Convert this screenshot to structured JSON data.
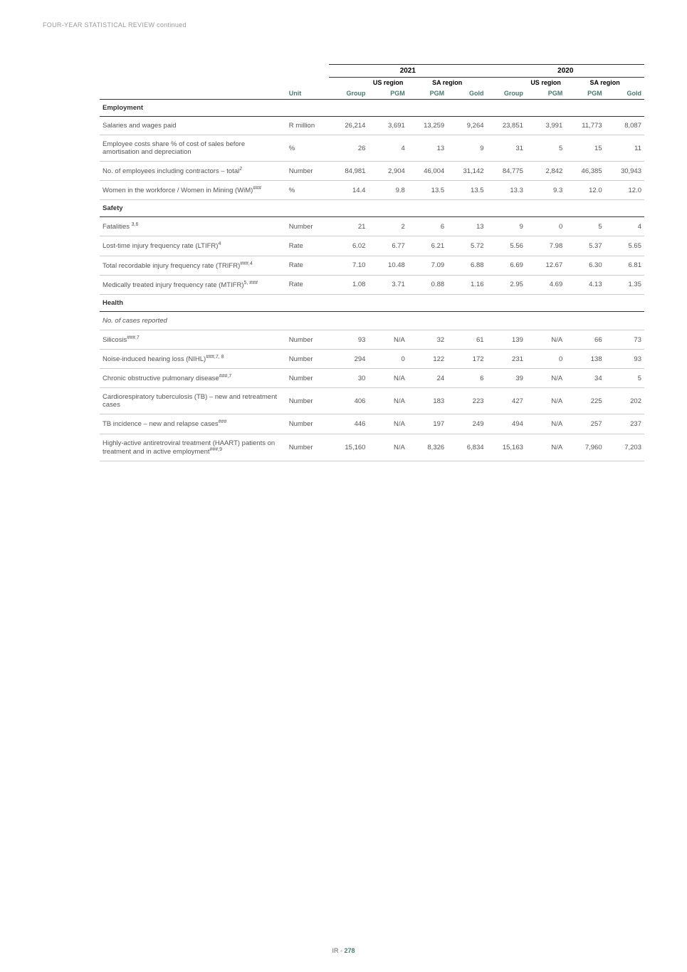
{
  "header": "FOUR-YEAR STATISTICAL REVIEW continued",
  "years": [
    "2021",
    "2020"
  ],
  "region_group": "US region",
  "sa_region": "SA region",
  "col_labels": {
    "unit": "Unit",
    "group": "Group",
    "pgm": "PGM",
    "gold": "Gold"
  },
  "sections": [
    {
      "title": "Employment",
      "rows": [
        {
          "label": "Salaries and wages paid",
          "unit": "R million",
          "y2021": [
            "26,214",
            "3,691",
            "13,259",
            "9,264"
          ],
          "y2020": [
            "23,851",
            "3,991",
            "11,773",
            "8,087"
          ]
        },
        {
          "label": "Employee costs share % of cost of sales before amortisation and depreciation",
          "unit": "%",
          "y2021": [
            "26",
            "4",
            "13",
            "9"
          ],
          "y2020": [
            "31",
            "5",
            "15",
            "11"
          ]
        },
        {
          "label": "No. of employees including contractors – total",
          "sup": "2",
          "unit": "Number",
          "y2021": [
            "84,981",
            "2,904",
            "46,004",
            "31,142"
          ],
          "y2020": [
            "84,775",
            "2,842",
            "46,385",
            "30,943"
          ]
        },
        {
          "label": "Women in the workforce / Women in Mining (WiM)",
          "sup": "###",
          "unit": "%",
          "y2021": [
            "14.4",
            "9.8",
            "13.5",
            "13.5"
          ],
          "y2020": [
            "13.3",
            "9.3",
            "12.0",
            "12.0"
          ]
        }
      ]
    },
    {
      "title": "Safety",
      "rows": [
        {
          "label": "Fatalities ",
          "sup": "3,6",
          "unit": "Number",
          "y2021": [
            "21",
            "2",
            "6",
            "13"
          ],
          "y2020": [
            "9",
            "0",
            "5",
            "4"
          ]
        },
        {
          "label": "Lost-time injury frequency rate (LTIFR)",
          "sup": "4",
          "unit": "Rate",
          "y2021": [
            "6.02",
            "6.77",
            "6.21",
            "5.72"
          ],
          "y2020": [
            "5.56",
            "7.98",
            "5.37",
            "5.65"
          ]
        },
        {
          "label": "Total recordable injury frequency rate (TRIFR)",
          "sup": "###,4",
          "unit": "Rate",
          "y2021": [
            "7.10",
            "10.48",
            "7.09",
            "6.88"
          ],
          "y2020": [
            "6.69",
            "12.67",
            "6.30",
            "6.81"
          ]
        },
        {
          "label": "Medically treated injury frequency rate (MTIFR)",
          "sup": "5, ###",
          "unit": "Rate",
          "y2021": [
            "1.08",
            "3.71",
            "0.88",
            "1.16"
          ],
          "y2020": [
            "2.95",
            "4.69",
            "4.13",
            "1.35"
          ]
        }
      ]
    },
    {
      "title": "Health",
      "rows": [
        {
          "label": "No. of cases reported",
          "italic": true,
          "unit": "",
          "y2021": [
            "",
            "",
            "",
            ""
          ],
          "y2020": [
            "",
            "",
            "",
            ""
          ]
        },
        {
          "label": "Silicosis",
          "sup": "###,7",
          "unit": "Number",
          "y2021": [
            "93",
            "N/A",
            "32",
            "61"
          ],
          "y2020": [
            "139",
            "N/A",
            "66",
            "73"
          ]
        },
        {
          "label": "Noise-induced hearing loss (NIHL)",
          "sup": "###,7, 8",
          "unit": "Number",
          "y2021": [
            "294",
            "0",
            "122",
            "172"
          ],
          "y2020": [
            "231",
            "0",
            "138",
            "93"
          ]
        },
        {
          "label": "Chronic obstructive pulmonary disease",
          "sup": "###,7",
          "unit": "Number",
          "y2021": [
            "30",
            "N/A",
            "24",
            "6"
          ],
          "y2020": [
            "39",
            "N/A",
            "34",
            "5"
          ]
        },
        {
          "label": "Cardiorespiratory tuberculosis (TB) – new and retreatment cases",
          "unit": "Number",
          "y2021": [
            "406",
            "N/A",
            "183",
            "223"
          ],
          "y2020": [
            "427",
            "N/A",
            "225",
            "202"
          ]
        },
        {
          "label": "TB incidence – new and relapse cases",
          "sup": "###",
          "unit": "Number",
          "y2021": [
            "446",
            "N/A",
            "197",
            "249"
          ],
          "y2020": [
            "494",
            "N/A",
            "257",
            "237"
          ]
        },
        {
          "label": "Highly-active antiretroviral treatment (HAART) patients on treatment and in active employment",
          "sup": "###,9",
          "unit": "Number",
          "y2021": [
            "15,160",
            "N/A",
            "8,326",
            "6,834"
          ],
          "y2020": [
            "15,163",
            "N/A",
            "7,960",
            "7,203"
          ]
        }
      ]
    }
  ],
  "footer": {
    "prefix": "IR - ",
    "page": "278"
  }
}
